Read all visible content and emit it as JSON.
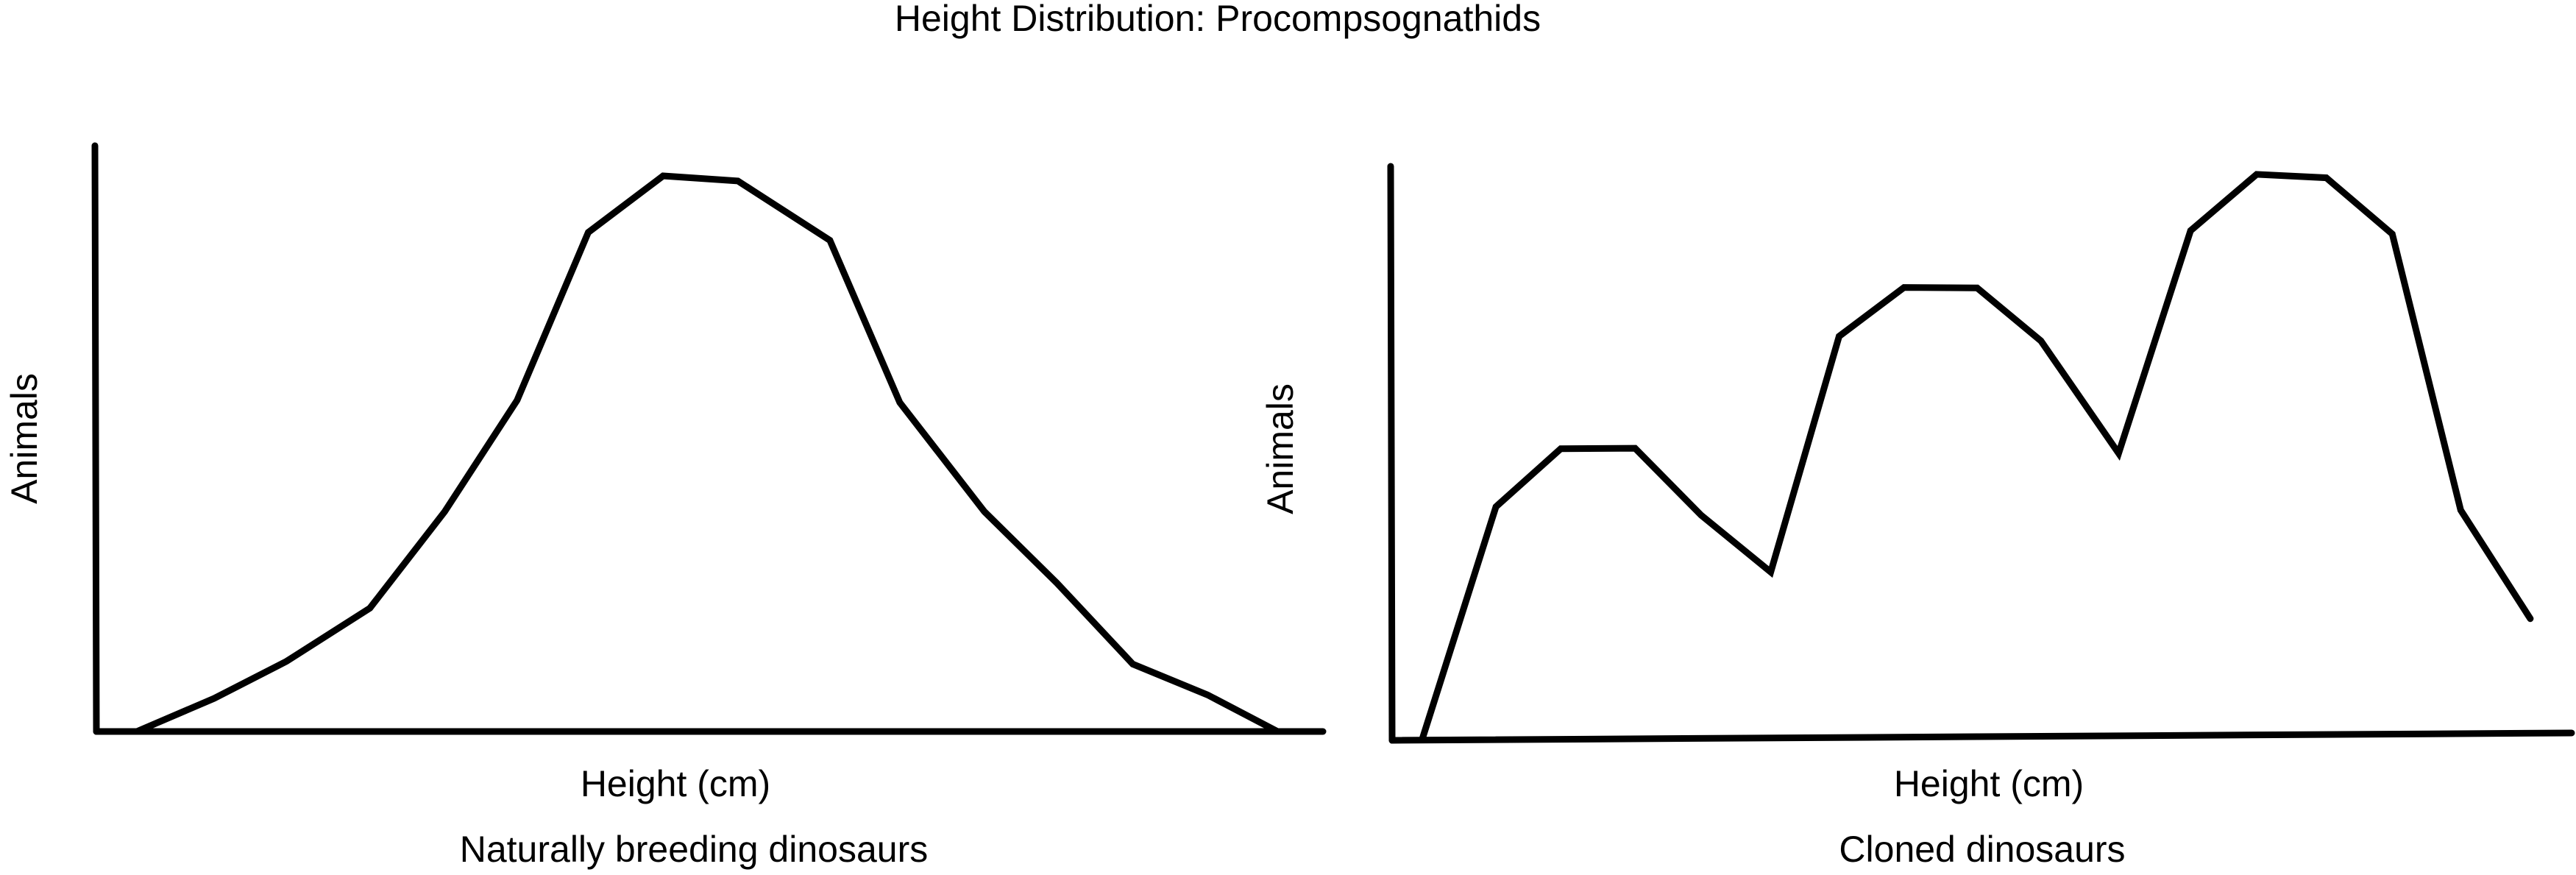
{
  "title": "Height Distribution: Procompsognathids",
  "chart_data": [
    {
      "type": "line",
      "title": "",
      "caption": "Naturally breeding dinosaurs",
      "xlabel": "Height (cm)",
      "ylabel": "Animals",
      "xlim": [
        0,
        100
      ],
      "ylim": [
        0,
        100
      ],
      "grid": false,
      "legend": "none",
      "line_color": "#000000",
      "series": [
        {
          "x": [
            3.3,
            9.6,
            15.5,
            22.3,
            28.4,
            34.3,
            40.1,
            46.2,
            52.3,
            59.8,
            65.5,
            72.4,
            78.3,
            84.5,
            90.6,
            96.3
          ],
          "y": [
            0.0,
            5.8,
            12.3,
            21.6,
            38.5,
            58.0,
            87.4,
            97.3,
            96.4,
            86.0,
            57.6,
            38.5,
            26.0,
            11.8,
            6.4,
            0.0
          ]
        }
      ]
    },
    {
      "type": "line",
      "title": "",
      "caption": "Cloned dinosaurs",
      "xlabel": "Height (cm)",
      "ylabel": "Animals",
      "xlim": [
        0,
        100
      ],
      "ylim": [
        0,
        100
      ],
      "grid": false,
      "legend": "none",
      "line_color": "#000000",
      "series": [
        {
          "x": [
            2.6,
            8.8,
            14.3,
            20.6,
            26.2,
            32.1,
            37.9,
            43.4,
            49.6,
            55.0,
            61.6,
            67.7,
            73.3,
            79.2,
            84.8,
            90.6,
            96.5
          ],
          "y": [
            0.0,
            40.6,
            50.8,
            50.9,
            39.1,
            29.1,
            70.6,
            79.2,
            79.1,
            69.8,
            50.0,
            89.2,
            99.1,
            98.5,
            88.6,
            40.0,
            20.9
          ]
        }
      ]
    }
  ]
}
